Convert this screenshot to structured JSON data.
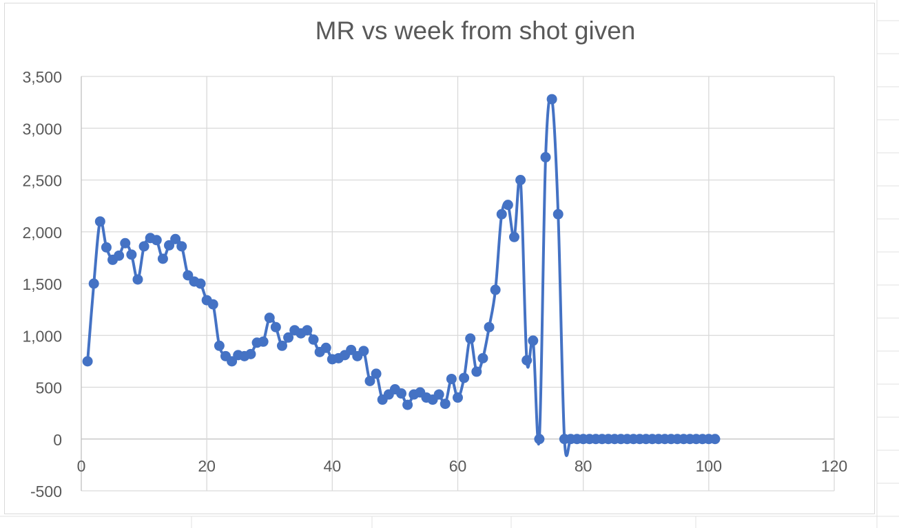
{
  "chart_data": {
    "type": "line",
    "title": "MR vs week from shot given",
    "xlabel": "",
    "ylabel": "",
    "xlim": [
      0,
      120
    ],
    "ylim": [
      -500,
      3500
    ],
    "x_ticks": [
      0,
      20,
      40,
      60,
      80,
      100,
      120
    ],
    "x_tick_labels": [
      "0",
      "20",
      "40",
      "60",
      "80",
      "100",
      "120"
    ],
    "y_ticks": [
      -500,
      0,
      500,
      1000,
      1500,
      2000,
      2500,
      3000,
      3500
    ],
    "y_tick_labels": [
      "-500",
      "0",
      "500",
      "1,000",
      "1,500",
      "2,000",
      "2,500",
      "3,000",
      "3,500"
    ],
    "grid": true,
    "legend": "none",
    "smoothed": true,
    "series": [
      {
        "color": "#4472c4",
        "marker": "circle",
        "x": [
          1,
          2,
          3,
          4,
          5,
          6,
          7,
          8,
          9,
          10,
          11,
          12,
          13,
          14,
          15,
          16,
          17,
          18,
          19,
          20,
          21,
          22,
          23,
          24,
          25,
          26,
          27,
          28,
          29,
          30,
          31,
          32,
          33,
          34,
          35,
          36,
          37,
          38,
          39,
          40,
          41,
          42,
          43,
          44,
          45,
          46,
          47,
          48,
          49,
          50,
          51,
          52,
          53,
          54,
          55,
          56,
          57,
          58,
          59,
          60,
          61,
          62,
          63,
          64,
          65,
          66,
          67,
          68,
          69,
          70,
          71,
          72,
          73,
          74,
          75,
          76,
          77,
          78,
          79,
          80,
          81,
          82,
          83,
          84,
          85,
          86,
          87,
          88,
          89,
          90,
          91,
          92,
          93,
          94,
          95,
          96,
          97,
          98,
          99,
          100,
          101
        ],
        "y": [
          750,
          1500,
          2100,
          1850,
          1730,
          1770,
          1890,
          1780,
          1540,
          1860,
          1940,
          1920,
          1740,
          1870,
          1930,
          1860,
          1580,
          1520,
          1500,
          1340,
          1300,
          900,
          800,
          750,
          810,
          800,
          820,
          930,
          940,
          1170,
          1080,
          900,
          980,
          1050,
          1020,
          1050,
          960,
          840,
          880,
          770,
          780,
          810,
          860,
          800,
          850,
          560,
          630,
          380,
          430,
          480,
          440,
          330,
          430,
          450,
          400,
          380,
          430,
          340,
          580,
          400,
          590,
          970,
          650,
          780,
          1080,
          1440,
          2170,
          2260,
          1950,
          2500,
          760,
          950,
          0,
          2720,
          3280,
          2170,
          0,
          0,
          0,
          0,
          0,
          0,
          0,
          0,
          0,
          0,
          0,
          0,
          0,
          0,
          0,
          0,
          0,
          0,
          0,
          0,
          0,
          0,
          0,
          0,
          0
        ]
      }
    ]
  }
}
